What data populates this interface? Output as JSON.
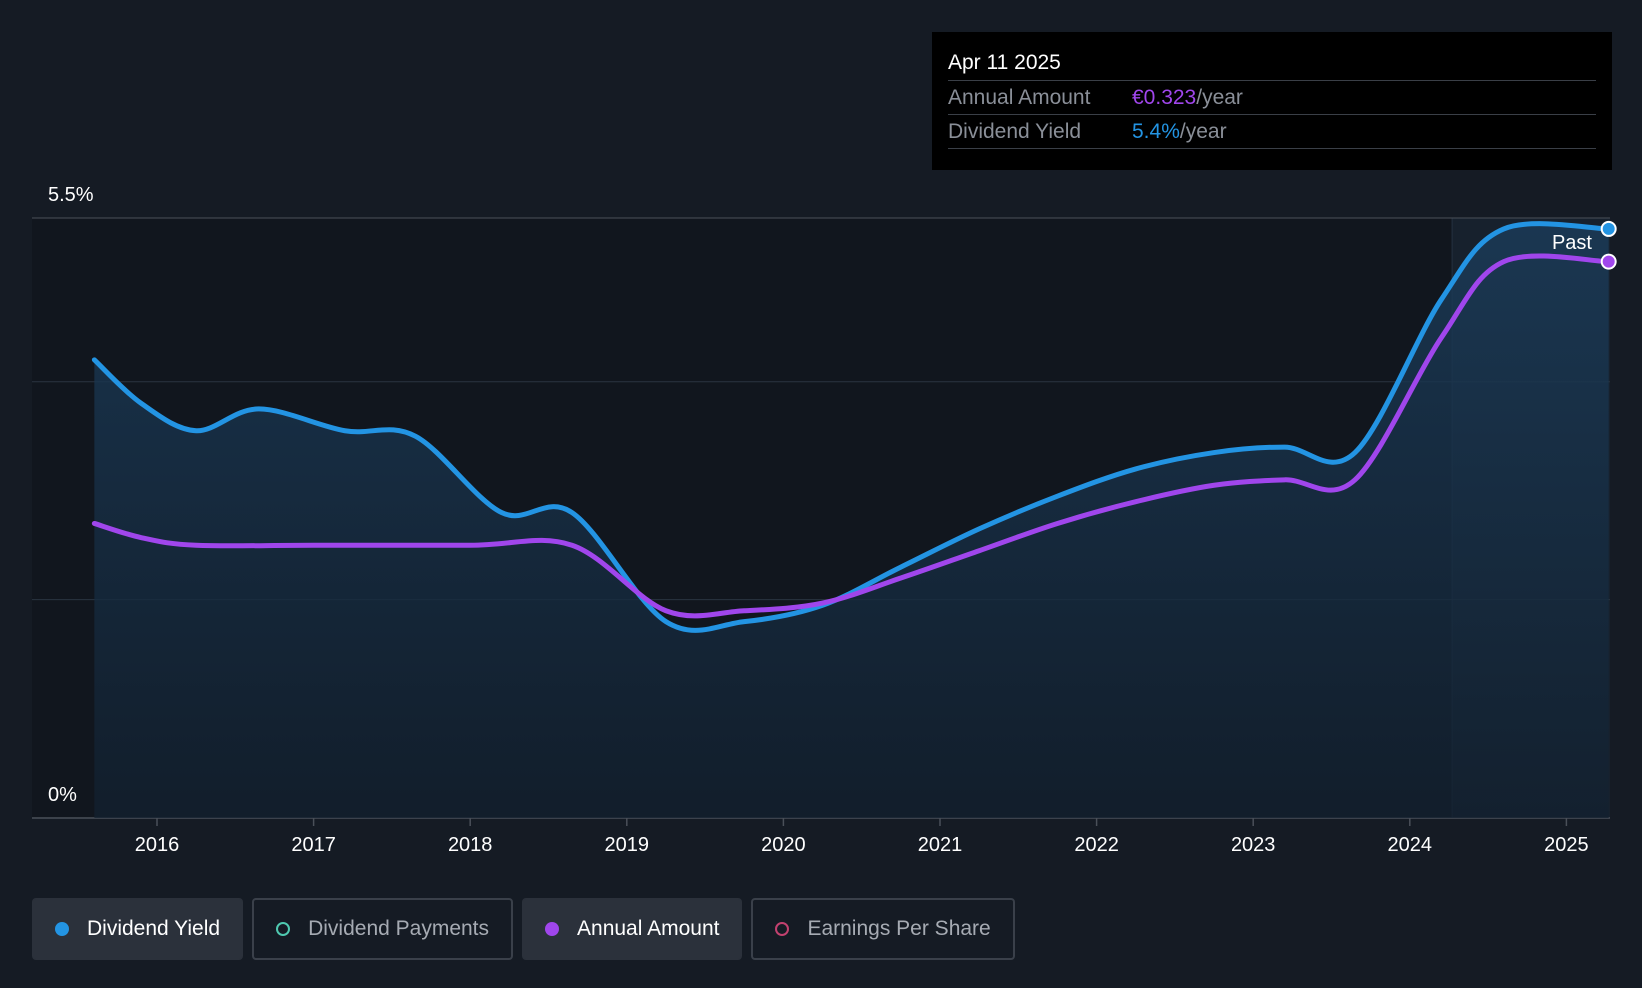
{
  "chart_data": {
    "type": "line",
    "ylim": [
      0,
      5.5
    ],
    "y_tick_labels": [
      "5.5%",
      "0%"
    ],
    "x_tick_labels": [
      "2016",
      "2017",
      "2018",
      "2019",
      "2020",
      "2021",
      "2022",
      "2023",
      "2024",
      "2025"
    ],
    "forecast_label": "Past",
    "series": [
      {
        "name": "Dividend Yield",
        "color": "#2394e3",
        "points": [
          [
            "2015.6",
            4.2
          ],
          [
            "2015.9",
            3.8
          ],
          [
            "2016.25",
            3.55
          ],
          [
            "2016.65",
            3.75
          ],
          [
            "2017.2",
            3.55
          ],
          [
            "2017.65",
            3.5
          ],
          [
            "2018.2",
            2.8
          ],
          [
            "2018.65",
            2.8
          ],
          [
            "2019.25",
            1.8
          ],
          [
            "2019.75",
            1.8
          ],
          [
            "2020.25",
            1.95
          ],
          [
            "2020.75",
            2.3
          ],
          [
            "2021.25",
            2.65
          ],
          [
            "2021.75",
            2.95
          ],
          [
            "2022.25",
            3.2
          ],
          [
            "2022.75",
            3.35
          ],
          [
            "2023.2",
            3.4
          ],
          [
            "2023.65",
            3.35
          ],
          [
            "2024.2",
            4.75
          ],
          [
            "2024.6",
            5.4
          ],
          [
            "2025.27",
            5.4
          ]
        ]
      },
      {
        "name": "Annual Amount",
        "color": "#a046ec",
        "points": [
          [
            "2015.6",
            2.7
          ],
          [
            "2015.9",
            2.57
          ],
          [
            "2016.25",
            2.5
          ],
          [
            "2017.0",
            2.5
          ],
          [
            "2018.0",
            2.5
          ],
          [
            "2018.65",
            2.5
          ],
          [
            "2019.25",
            1.9
          ],
          [
            "2019.75",
            1.9
          ],
          [
            "2020.25",
            1.97
          ],
          [
            "2020.75",
            2.2
          ],
          [
            "2021.25",
            2.45
          ],
          [
            "2021.75",
            2.7
          ],
          [
            "2022.25",
            2.9
          ],
          [
            "2022.75",
            3.05
          ],
          [
            "2023.2",
            3.1
          ],
          [
            "2023.65",
            3.1
          ],
          [
            "2024.2",
            4.4
          ],
          [
            "2024.6",
            5.1
          ],
          [
            "2025.27",
            5.1
          ]
        ]
      }
    ]
  },
  "tooltip": {
    "date": "Apr 11 2025",
    "rows": [
      {
        "label": "Annual Amount",
        "value": "€0.323",
        "unit": "/year",
        "color": "#a046ec"
      },
      {
        "label": "Dividend Yield",
        "value": "5.4%",
        "unit": "/year",
        "color": "#2394e3"
      }
    ]
  },
  "legend": [
    {
      "label": "Dividend Yield",
      "active": true,
      "color": "#2394e3",
      "filled": true
    },
    {
      "label": "Dividend Payments",
      "active": false,
      "color": "#4fc9b0",
      "filled": false
    },
    {
      "label": "Annual Amount",
      "active": true,
      "color": "#a046ec",
      "filled": true
    },
    {
      "label": "Earnings Per Share",
      "active": false,
      "color": "#c2416f",
      "filled": false
    }
  ]
}
